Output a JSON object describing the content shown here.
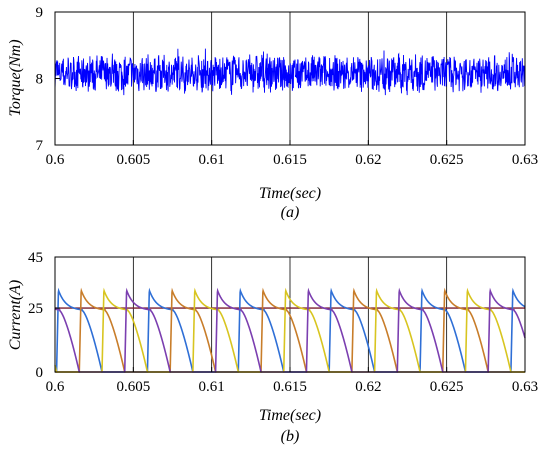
{
  "chart_data": [
    {
      "type": "line",
      "xlabel": "Time(sec)",
      "ylabel": "Torque(Nm)",
      "caption": "(a)",
      "xlim": [
        0.6,
        0.63
      ],
      "ylim": [
        7,
        9
      ],
      "x_ticks": [
        0.6,
        0.605,
        0.61,
        0.615,
        0.62,
        0.625,
        0.63
      ],
      "x_tick_labels": [
        "0.6",
        "0.605",
        "0.61",
        "0.615",
        "0.62",
        "0.625",
        "0.63"
      ],
      "y_ticks": [
        7,
        8,
        9
      ],
      "y_tick_labels": [
        "7",
        "8",
        "9"
      ],
      "grid": "vertical",
      "series": [
        {
          "color": "#0000ff",
          "mean": 8.08,
          "ripple_band": [
            7.75,
            8.45
          ]
        }
      ]
    },
    {
      "type": "line",
      "xlabel": "Time(sec)",
      "ylabel": "Current(A)",
      "caption": "(b)",
      "xlim": [
        0.6,
        0.63
      ],
      "ylim": [
        0,
        45
      ],
      "x_ticks": [
        0.6,
        0.605,
        0.61,
        0.615,
        0.62,
        0.625,
        0.63
      ],
      "x_tick_labels": [
        "0.6",
        "0.605",
        "0.61",
        "0.615",
        "0.62",
        "0.625",
        "0.63"
      ],
      "y_ticks": [
        0,
        25,
        45
      ],
      "y_tick_labels": [
        "0",
        "25",
        "45"
      ],
      "grid": "vertical",
      "reference_line": {
        "y": 25,
        "color": "#7a1f2e"
      },
      "period": 0.0058,
      "pulse": {
        "rise_time": 0.00012,
        "peak": 32,
        "plateau": 24,
        "tail_start": 0.00165,
        "width": 0.0029
      },
      "series": [
        {
          "color": "#2f6fd6",
          "phase": 0.0001
        },
        {
          "color": "#c87d2a",
          "phase": 0.00155
        },
        {
          "color": "#d8c520",
          "phase": 0.003
        },
        {
          "color": "#7b3fb0",
          "phase": 0.00445
        }
      ]
    }
  ]
}
